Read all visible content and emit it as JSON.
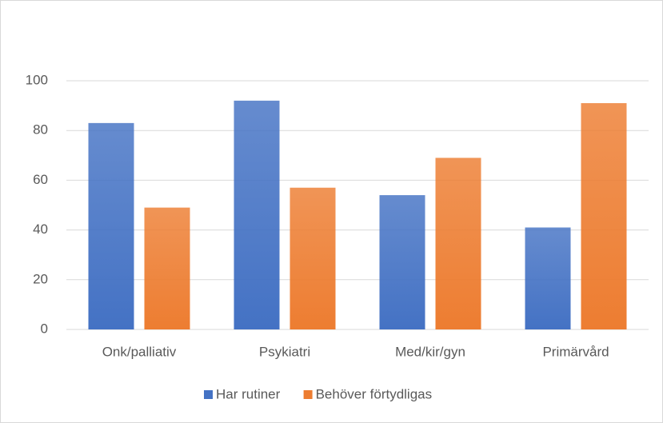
{
  "chart_data": {
    "type": "bar",
    "categories": [
      "Onk/palliativ",
      "Psykiatri",
      "Med/kir/gyn",
      "Primärvård"
    ],
    "series": [
      {
        "name": "Har rutiner",
        "color": "#4472c4",
        "values": [
          83,
          92,
          54,
          41
        ]
      },
      {
        "name": "Behöver förtydligas",
        "color": "#ed7d31",
        "values": [
          49,
          57,
          69,
          91
        ]
      }
    ],
    "ylim": [
      0,
      100
    ],
    "yticks": [
      0,
      20,
      40,
      60,
      80,
      100
    ],
    "grid": true,
    "legend": "bottom"
  }
}
